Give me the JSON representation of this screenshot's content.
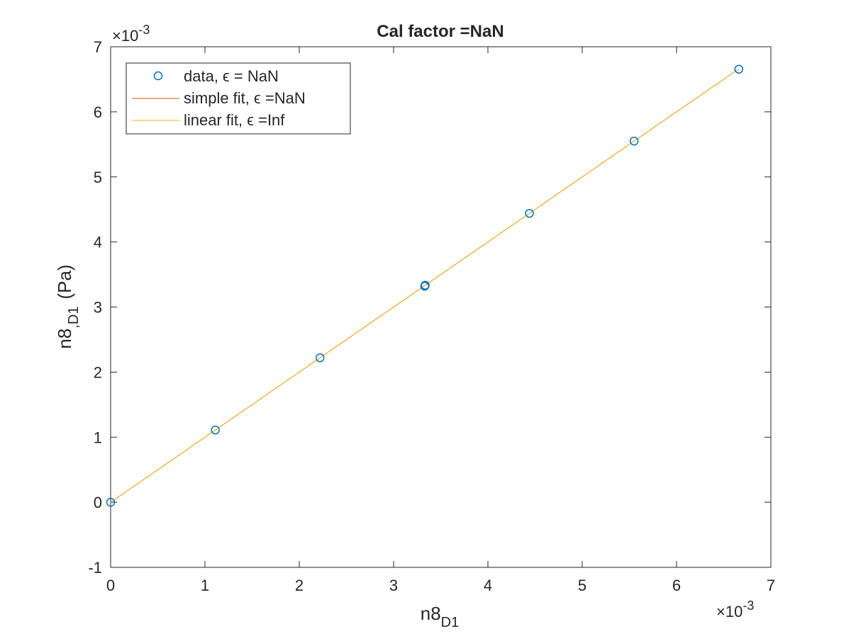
{
  "chart_data": {
    "type": "scatter",
    "title": "Cal factor =NaN",
    "xlabel": {
      "base": "n8",
      "sub": "D1"
    },
    "ylabel": {
      "base": "n8",
      "sub": ",D1",
      "unit": "(Pa)"
    },
    "xlim": [
      0,
      7
    ],
    "ylim": [
      -1,
      7
    ],
    "xticks": [
      0,
      1,
      2,
      3,
      4,
      5,
      6,
      7
    ],
    "yticks": [
      -1,
      0,
      1,
      2,
      3,
      4,
      5,
      6,
      7
    ],
    "x_exponent": {
      "prefix": "×10",
      "power": "-3"
    },
    "y_exponent": {
      "prefix": "×10",
      "power": "-3"
    },
    "scale_note": "axis values are in units of 1e-3",
    "grid": false,
    "legend_position": "top-left",
    "series": [
      {
        "name": "data, ϵ = NaN",
        "kind": "markers",
        "marker": "circle",
        "color": "#0072BD",
        "x": [
          0,
          1.11,
          2.22,
          3.33,
          3.335,
          4.44,
          5.55,
          6.66
        ],
        "y": [
          0,
          1.11,
          2.22,
          3.32,
          3.335,
          4.44,
          5.55,
          6.655
        ]
      },
      {
        "name": "simple fit, ϵ =NaN",
        "kind": "line",
        "color": "#D95319",
        "x": [
          0,
          6.66
        ],
        "y": [
          0,
          6.66
        ]
      },
      {
        "name": "linear fit, ϵ =Inf",
        "kind": "line",
        "color": "#EDB120",
        "x": [
          0,
          6.66
        ],
        "y": [
          0,
          6.66
        ]
      }
    ]
  }
}
